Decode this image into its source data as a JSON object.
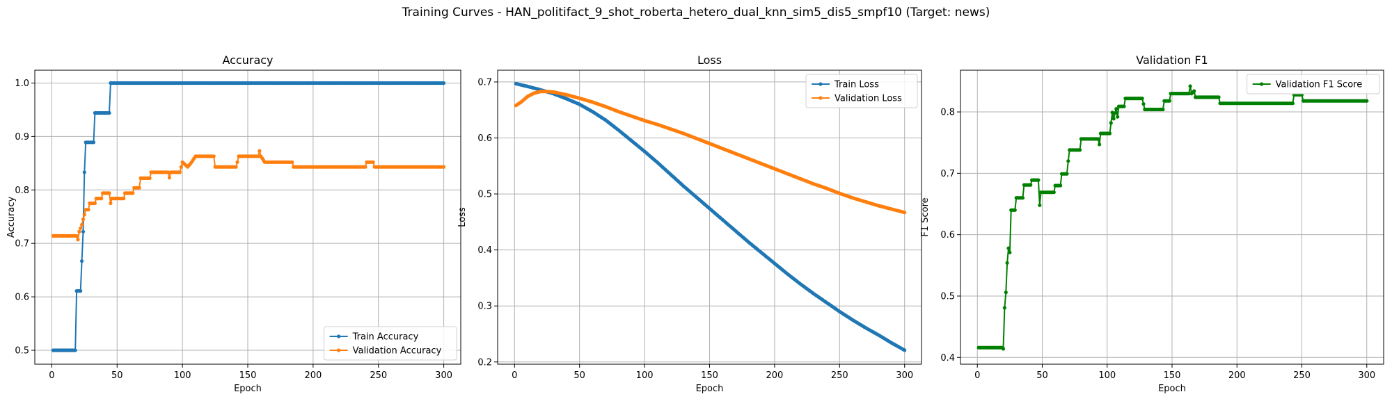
{
  "figure": {
    "title": "Training Curves - HAN_politifact_9_shot_roberta_hetero_dual_knn_sim5_dis5_smpf10 (Target: news)"
  },
  "colors": {
    "train": "#1f77b4",
    "validation": "#ff7f0e",
    "f1": "#008000",
    "grid": "#b0b0b0"
  },
  "chart_data": [
    {
      "type": "line",
      "title": "Accuracy",
      "xlabel": "Epoch",
      "ylabel": "Accuracy",
      "xlim": [
        -13,
        313
      ],
      "ylim": [
        0.474,
        1.024
      ],
      "xticks": [
        0,
        50,
        100,
        150,
        200,
        250,
        300
      ],
      "yticks": [
        0.5,
        0.6,
        0.7,
        0.8,
        0.9,
        1.0
      ],
      "ytick_labels": [
        "0.5",
        "0.6",
        "0.7",
        "0.8",
        "0.9",
        "1.0"
      ],
      "grid": true,
      "legend_position": "lower-right",
      "series": [
        {
          "name": "Train Accuracy",
          "color": "#1f77b4",
          "points": [
            [
              1,
              0.5
            ],
            [
              18,
              0.5
            ],
            [
              19,
              0.611
            ],
            [
              22,
              0.611
            ],
            [
              23,
              0.667
            ],
            [
              24,
              0.722
            ],
            [
              25,
              0.833
            ],
            [
              26,
              0.889
            ],
            [
              32,
              0.889
            ],
            [
              33,
              0.944
            ],
            [
              44,
              0.944
            ],
            [
              45,
              1.0
            ],
            [
              300,
              1.0
            ]
          ]
        },
        {
          "name": "Validation Accuracy",
          "color": "#ff7f0e",
          "points": [
            [
              1,
              0.714
            ],
            [
              19,
              0.714
            ],
            [
              20,
              0.707
            ],
            [
              21,
              0.722
            ],
            [
              23,
              0.735
            ],
            [
              24,
              0.745
            ],
            [
              26,
              0.763
            ],
            [
              28,
              0.763
            ],
            [
              29,
              0.775
            ],
            [
              33,
              0.775
            ],
            [
              34,
              0.784
            ],
            [
              38,
              0.784
            ],
            [
              39,
              0.794
            ],
            [
              44,
              0.794
            ],
            [
              45,
              0.775
            ],
            [
              46,
              0.784
            ],
            [
              55,
              0.784
            ],
            [
              56,
              0.794
            ],
            [
              62,
              0.794
            ],
            [
              63,
              0.804
            ],
            [
              67,
              0.804
            ],
            [
              68,
              0.822
            ],
            [
              75,
              0.822
            ],
            [
              76,
              0.833
            ],
            [
              89,
              0.833
            ],
            [
              90,
              0.823
            ],
            [
              91,
              0.833
            ],
            [
              98,
              0.833
            ],
            [
              99,
              0.843
            ],
            [
              100,
              0.852
            ],
            [
              104,
              0.843
            ],
            [
              107,
              0.852
            ],
            [
              110,
              0.863
            ],
            [
              124,
              0.863
            ],
            [
              125,
              0.843
            ],
            [
              141,
              0.843
            ],
            [
              142,
              0.852
            ],
            [
              143,
              0.863
            ],
            [
              158,
              0.863
            ],
            [
              159,
              0.873
            ],
            [
              160,
              0.863
            ],
            [
              163,
              0.852
            ],
            [
              184,
              0.852
            ],
            [
              185,
              0.843
            ],
            [
              240,
              0.843
            ],
            [
              241,
              0.852
            ],
            [
              246,
              0.852
            ],
            [
              247,
              0.843
            ],
            [
              300,
              0.843
            ]
          ]
        }
      ]
    },
    {
      "type": "line",
      "title": "Loss",
      "xlabel": "Epoch",
      "ylabel": "Loss",
      "xlim": [
        -13,
        313
      ],
      "ylim": [
        0.196,
        0.721
      ],
      "xticks": [
        0,
        50,
        100,
        150,
        200,
        250,
        300
      ],
      "yticks": [
        0.2,
        0.3,
        0.4,
        0.5,
        0.6,
        0.7
      ],
      "ytick_labels": [
        "0.2",
        "0.3",
        "0.4",
        "0.5",
        "0.6",
        "0.7"
      ],
      "grid": true,
      "legend_position": "upper-right",
      "series": [
        {
          "name": "Train Loss",
          "color": "#1f77b4",
          "points": [
            [
              1,
              0.697
            ],
            [
              10,
              0.692
            ],
            [
              20,
              0.686
            ],
            [
              30,
              0.679
            ],
            [
              40,
              0.67
            ],
            [
              50,
              0.66
            ],
            [
              60,
              0.647
            ],
            [
              70,
              0.632
            ],
            [
              80,
              0.614
            ],
            [
              90,
              0.595
            ],
            [
              100,
              0.576
            ],
            [
              110,
              0.556
            ],
            [
              120,
              0.535
            ],
            [
              130,
              0.514
            ],
            [
              140,
              0.494
            ],
            [
              150,
              0.474
            ],
            [
              160,
              0.454
            ],
            [
              170,
              0.434
            ],
            [
              180,
              0.414
            ],
            [
              190,
              0.395
            ],
            [
              200,
              0.376
            ],
            [
              210,
              0.357
            ],
            [
              220,
              0.339
            ],
            [
              230,
              0.322
            ],
            [
              240,
              0.306
            ],
            [
              250,
              0.29
            ],
            [
              260,
              0.275
            ],
            [
              270,
              0.261
            ],
            [
              280,
              0.248
            ],
            [
              290,
              0.234
            ],
            [
              300,
              0.221
            ]
          ]
        },
        {
          "name": "Validation Loss",
          "color": "#ff7f0e",
          "points": [
            [
              1,
              0.658
            ],
            [
              5,
              0.664
            ],
            [
              10,
              0.674
            ],
            [
              15,
              0.68
            ],
            [
              20,
              0.683
            ],
            [
              25,
              0.683
            ],
            [
              30,
              0.682
            ],
            [
              40,
              0.677
            ],
            [
              50,
              0.671
            ],
            [
              60,
              0.664
            ],
            [
              70,
              0.656
            ],
            [
              80,
              0.647
            ],
            [
              90,
              0.639
            ],
            [
              100,
              0.631
            ],
            [
              110,
              0.624
            ],
            [
              120,
              0.616
            ],
            [
              130,
              0.608
            ],
            [
              140,
              0.599
            ],
            [
              150,
              0.59
            ],
            [
              160,
              0.581
            ],
            [
              170,
              0.572
            ],
            [
              180,
              0.563
            ],
            [
              190,
              0.554
            ],
            [
              200,
              0.545
            ],
            [
              210,
              0.536
            ],
            [
              220,
              0.527
            ],
            [
              230,
              0.518
            ],
            [
              240,
              0.51
            ],
            [
              250,
              0.501
            ],
            [
              260,
              0.493
            ],
            [
              270,
              0.486
            ],
            [
              280,
              0.479
            ],
            [
              290,
              0.473
            ],
            [
              300,
              0.467
            ]
          ]
        }
      ]
    },
    {
      "type": "line",
      "title": "Validation F1",
      "xlabel": "Epoch",
      "ylabel": "F1 Score",
      "xlim": [
        -13,
        313
      ],
      "ylim": [
        0.389,
        0.868
      ],
      "xticks": [
        0,
        50,
        100,
        150,
        200,
        250,
        300
      ],
      "yticks": [
        0.4,
        0.5,
        0.6,
        0.7,
        0.8
      ],
      "ytick_labels": [
        "0.4",
        "0.5",
        "0.6",
        "0.7",
        "0.8"
      ],
      "grid": true,
      "legend_position": "upper-right",
      "series": [
        {
          "name": "Validation F1 Score",
          "color": "#008000",
          "points": [
            [
              1,
              0.416
            ],
            [
              19,
              0.416
            ],
            [
              20,
              0.414
            ],
            [
              21,
              0.481
            ],
            [
              22,
              0.506
            ],
            [
              23,
              0.554
            ],
            [
              24,
              0.578
            ],
            [
              25,
              0.571
            ],
            [
              26,
              0.64
            ],
            [
              29,
              0.64
            ],
            [
              30,
              0.66
            ],
            [
              35,
              0.66
            ],
            [
              36,
              0.681
            ],
            [
              41,
              0.681
            ],
            [
              42,
              0.689
            ],
            [
              47,
              0.689
            ],
            [
              48,
              0.648
            ],
            [
              49,
              0.669
            ],
            [
              59,
              0.669
            ],
            [
              60,
              0.68
            ],
            [
              64,
              0.68
            ],
            [
              65,
              0.699
            ],
            [
              69,
              0.699
            ],
            [
              70,
              0.72
            ],
            [
              71,
              0.738
            ],
            [
              79,
              0.738
            ],
            [
              80,
              0.756
            ],
            [
              93,
              0.756
            ],
            [
              94,
              0.747
            ],
            [
              95,
              0.765
            ],
            [
              102,
              0.765
            ],
            [
              103,
              0.782
            ],
            [
              104,
              0.799
            ],
            [
              105,
              0.789
            ],
            [
              106,
              0.798
            ],
            [
              107,
              0.805
            ],
            [
              108,
              0.792
            ],
            [
              109,
              0.809
            ],
            [
              113,
              0.809
            ],
            [
              114,
              0.822
            ],
            [
              127,
              0.822
            ],
            [
              128,
              0.813
            ],
            [
              129,
              0.804
            ],
            [
              143,
              0.804
            ],
            [
              144,
              0.818
            ],
            [
              148,
              0.818
            ],
            [
              149,
              0.83
            ],
            [
              163,
              0.83
            ],
            [
              164,
              0.842
            ],
            [
              165,
              0.83
            ],
            [
              167,
              0.834
            ],
            [
              168,
              0.824
            ],
            [
              186,
              0.824
            ],
            [
              187,
              0.814
            ],
            [
              243,
              0.814
            ],
            [
              244,
              0.828
            ],
            [
              250,
              0.828
            ],
            [
              251,
              0.818
            ],
            [
              300,
              0.818
            ]
          ]
        }
      ]
    }
  ]
}
